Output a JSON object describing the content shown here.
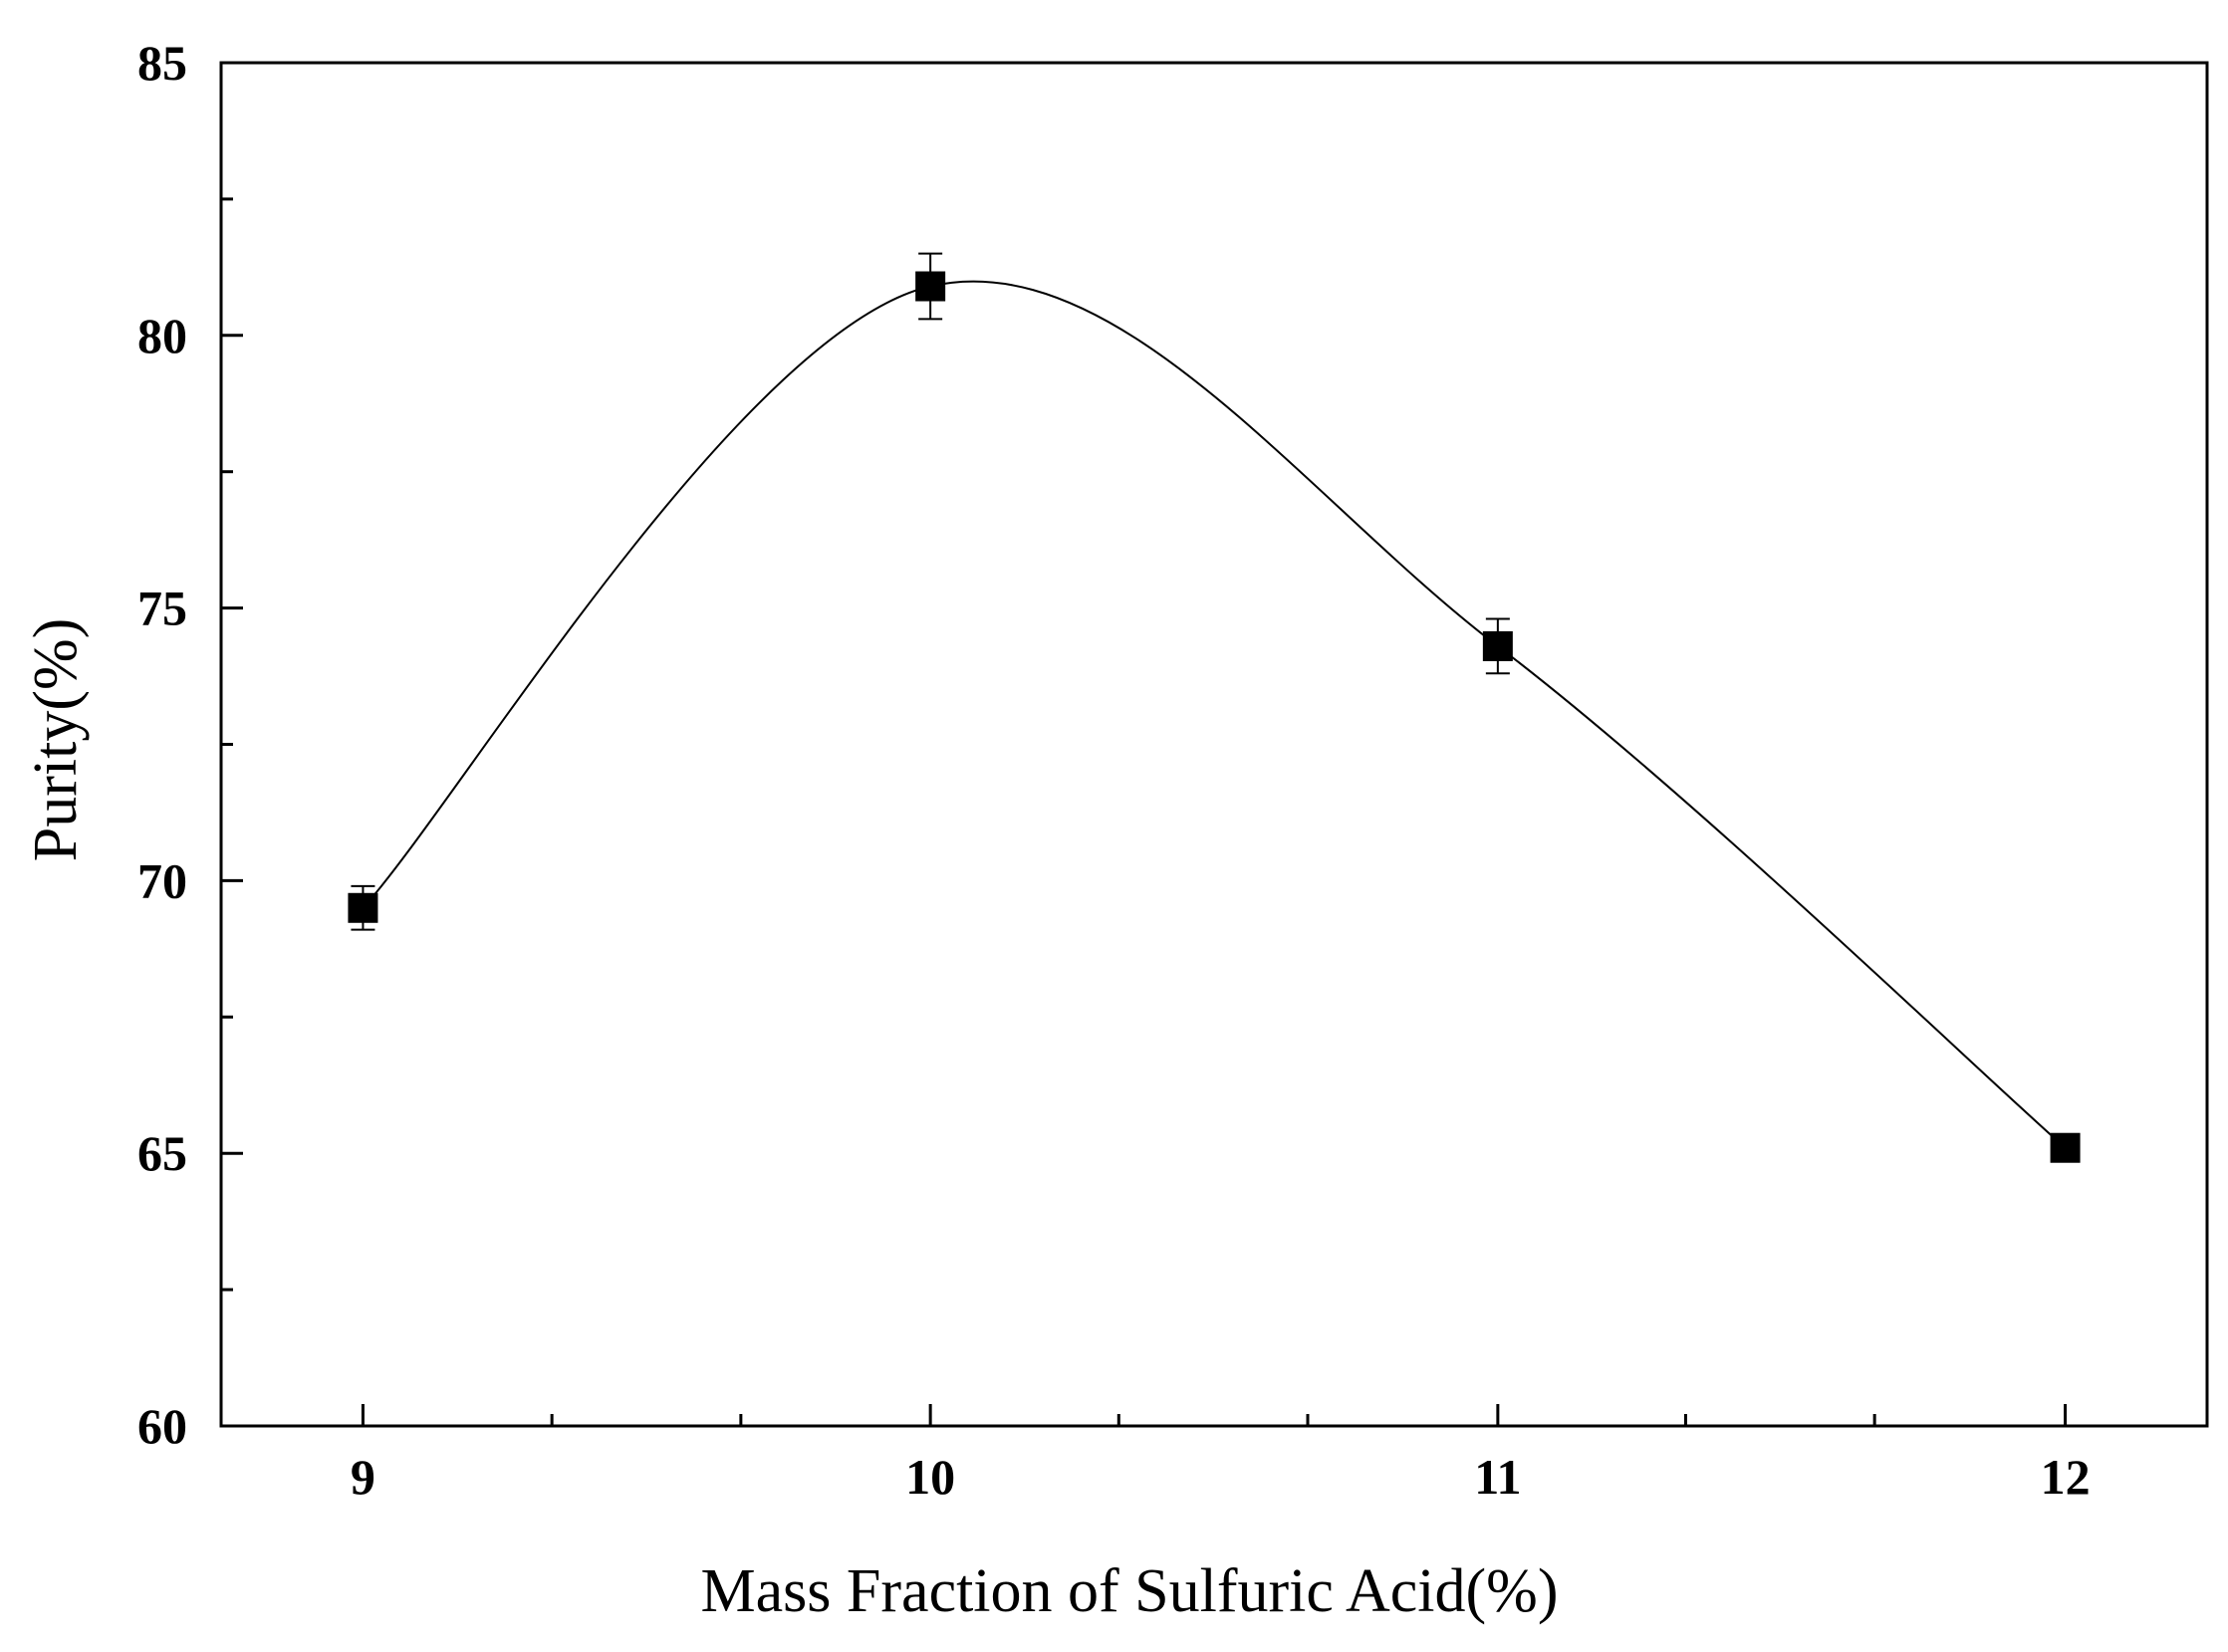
{
  "chart_data": {
    "type": "line",
    "title": "",
    "xlabel": "Mass Fraction of Sulfuric Acid(%)",
    "ylabel": "Purity(%)",
    "xlim": [
      8.75,
      12.25
    ],
    "ylim": [
      60,
      85
    ],
    "x_ticks": [
      9,
      10,
      11,
      12
    ],
    "y_ticks": [
      60,
      65,
      70,
      75,
      80,
      85
    ],
    "x_tick_labels": [
      "9",
      "10",
      "11",
      "12"
    ],
    "y_tick_labels": [
      "60",
      "65",
      "70",
      "75",
      "80",
      "85"
    ],
    "x_minor_step": 0.333,
    "y_minor_step": 2.5,
    "grid": false,
    "legend": "none",
    "series": [
      {
        "marker": "filled-square",
        "line": "smooth-spline",
        "color": "#000000",
        "x": [
          9,
          10,
          11,
          12
        ],
        "y": [
          69.5,
          80.9,
          74.3,
          65.1
        ],
        "error": [
          0.4,
          0.6,
          0.5,
          0.2
        ]
      }
    ]
  }
}
